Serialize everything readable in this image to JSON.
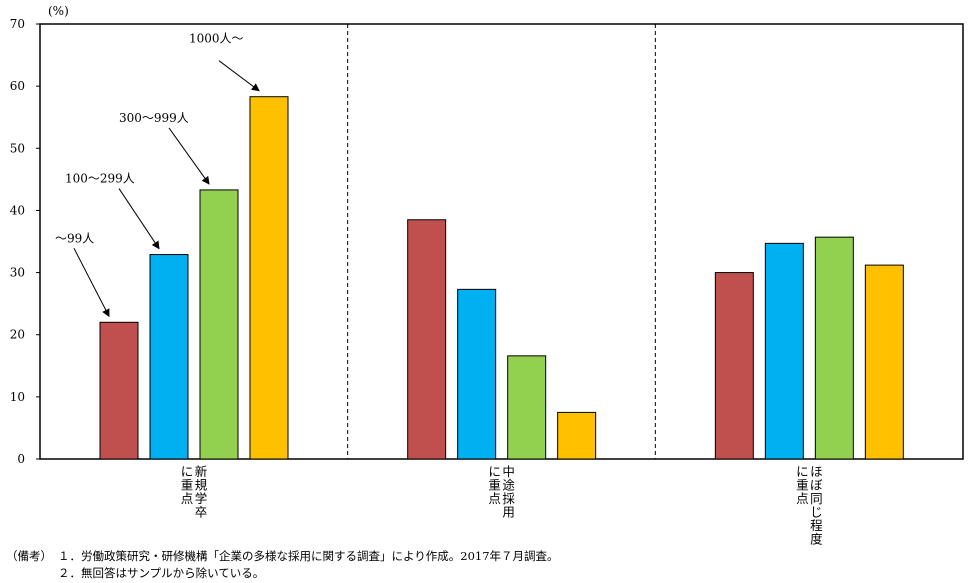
{
  "chart_data": {
    "type": "bar",
    "unit_label": "(%)",
    "ylim": [
      0,
      70
    ],
    "y_ticks": [
      "0",
      "10",
      "20",
      "30",
      "40",
      "50",
      "60",
      "70"
    ],
    "categories": [
      "新規学卒に重点",
      "中途採用に重点",
      "ほぼ同じ程度に重点"
    ],
    "category_label_columns": [
      [
        "新規学卒",
        "に重点"
      ],
      [
        "中途採用",
        "に重点"
      ],
      [
        "ほぼ同じ程度",
        "に重点"
      ]
    ],
    "series": [
      {
        "name": "〜99人",
        "color": "#C0504D",
        "values": [
          22.0,
          38.5,
          30.0
        ]
      },
      {
        "name": "100〜299人",
        "color": "#00B0F0",
        "values": [
          32.9,
          27.3,
          34.7
        ]
      },
      {
        "name": "300〜999人",
        "color": "#92D050",
        "values": [
          43.3,
          16.6,
          35.7
        ]
      },
      {
        "name": "1000人〜",
        "color": "#FFC000",
        "values": [
          58.3,
          7.5,
          31.2
        ]
      }
    ],
    "grid": false,
    "group_separators": "dashed"
  },
  "notes": {
    "prefix": "（備考）",
    "line1": "１．労働政策研究・研修機構「企業の多様な採用に関する調査」により作成。2017年７月調査。",
    "line2": "２．無回答はサンプルから除いている。"
  }
}
